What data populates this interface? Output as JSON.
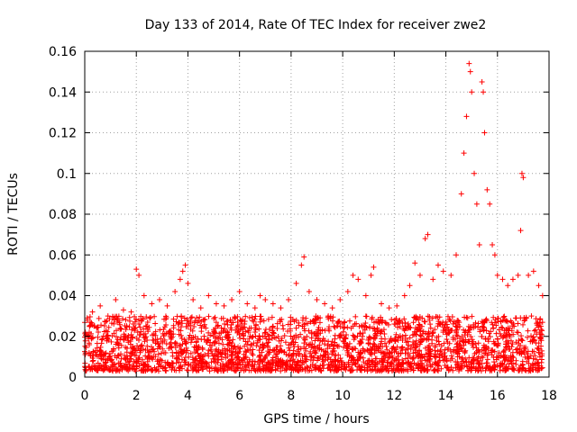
{
  "chart_data": {
    "type": "scatter",
    "title": "Day 133 of 2014, Rate Of TEC Index for receiver zwe2",
    "xlabel": "GPS time / hours",
    "ylabel": "ROTI / TECUs",
    "xlim": [
      0,
      18
    ],
    "ylim": [
      0,
      0.16
    ],
    "x_ticks": [
      0,
      2,
      4,
      6,
      8,
      10,
      12,
      14,
      16,
      18
    ],
    "x_tick_labels": [
      "0",
      "2",
      "4",
      "6",
      "8",
      "10",
      "12",
      "14",
      "16",
      "18"
    ],
    "y_ticks": [
      0,
      0.02,
      0.04,
      0.06,
      0.08,
      0.1,
      0.12,
      0.14,
      0.16
    ],
    "y_tick_labels": [
      "0",
      "0.02",
      "0.04",
      "0.06",
      "0.08",
      "0.1",
      "0.12",
      "0.14",
      "0.16"
    ],
    "grid": true,
    "marker": "+",
    "color": "#ff0000",
    "x_range_of_data": [
      0,
      17.75
    ],
    "series": [
      {
        "name": "zwe2",
        "x": [
          0.1,
          0.3,
          0.6,
          0.9,
          1.2,
          1.5,
          1.8,
          2.0,
          2.1,
          2.3,
          2.6,
          2.9,
          3.2,
          3.5,
          3.7,
          3.8,
          3.9,
          4.0,
          4.2,
          4.5,
          4.8,
          5.1,
          5.4,
          5.7,
          6.0,
          6.3,
          6.6,
          6.8,
          7.0,
          7.3,
          7.6,
          7.9,
          8.2,
          8.4,
          8.5,
          8.7,
          9.0,
          9.3,
          9.6,
          9.9,
          10.2,
          10.4,
          10.6,
          10.9,
          11.1,
          11.2,
          11.5,
          11.8,
          12.1,
          12.4,
          12.6,
          12.8,
          13.0,
          13.2,
          13.3,
          13.5,
          13.7,
          13.9,
          14.2,
          14.4,
          14.6,
          14.7,
          14.8,
          14.9,
          14.95,
          15.0,
          15.1,
          15.2,
          15.3,
          15.4,
          15.45,
          15.5,
          15.6,
          15.7,
          15.8,
          15.9,
          16.0,
          16.2,
          16.4,
          16.6,
          16.8,
          16.9,
          16.95,
          17.0,
          17.2,
          17.4,
          17.6,
          17.75
        ],
        "y": [
          0.028,
          0.032,
          0.035,
          0.03,
          0.038,
          0.033,
          0.032,
          0.053,
          0.05,
          0.04,
          0.036,
          0.038,
          0.035,
          0.042,
          0.048,
          0.052,
          0.055,
          0.046,
          0.038,
          0.034,
          0.04,
          0.036,
          0.035,
          0.038,
          0.042,
          0.036,
          0.034,
          0.04,
          0.038,
          0.036,
          0.034,
          0.038,
          0.046,
          0.055,
          0.059,
          0.042,
          0.038,
          0.036,
          0.034,
          0.038,
          0.042,
          0.05,
          0.048,
          0.04,
          0.05,
          0.054,
          0.036,
          0.034,
          0.035,
          0.04,
          0.045,
          0.056,
          0.05,
          0.068,
          0.07,
          0.048,
          0.055,
          0.052,
          0.05,
          0.06,
          0.09,
          0.11,
          0.128,
          0.154,
          0.15,
          0.14,
          0.1,
          0.085,
          0.065,
          0.145,
          0.14,
          0.12,
          0.092,
          0.085,
          0.065,
          0.06,
          0.05,
          0.048,
          0.045,
          0.048,
          0.05,
          0.072,
          0.1,
          0.098,
          0.05,
          0.052,
          0.045,
          0.04
        ]
      }
    ]
  }
}
